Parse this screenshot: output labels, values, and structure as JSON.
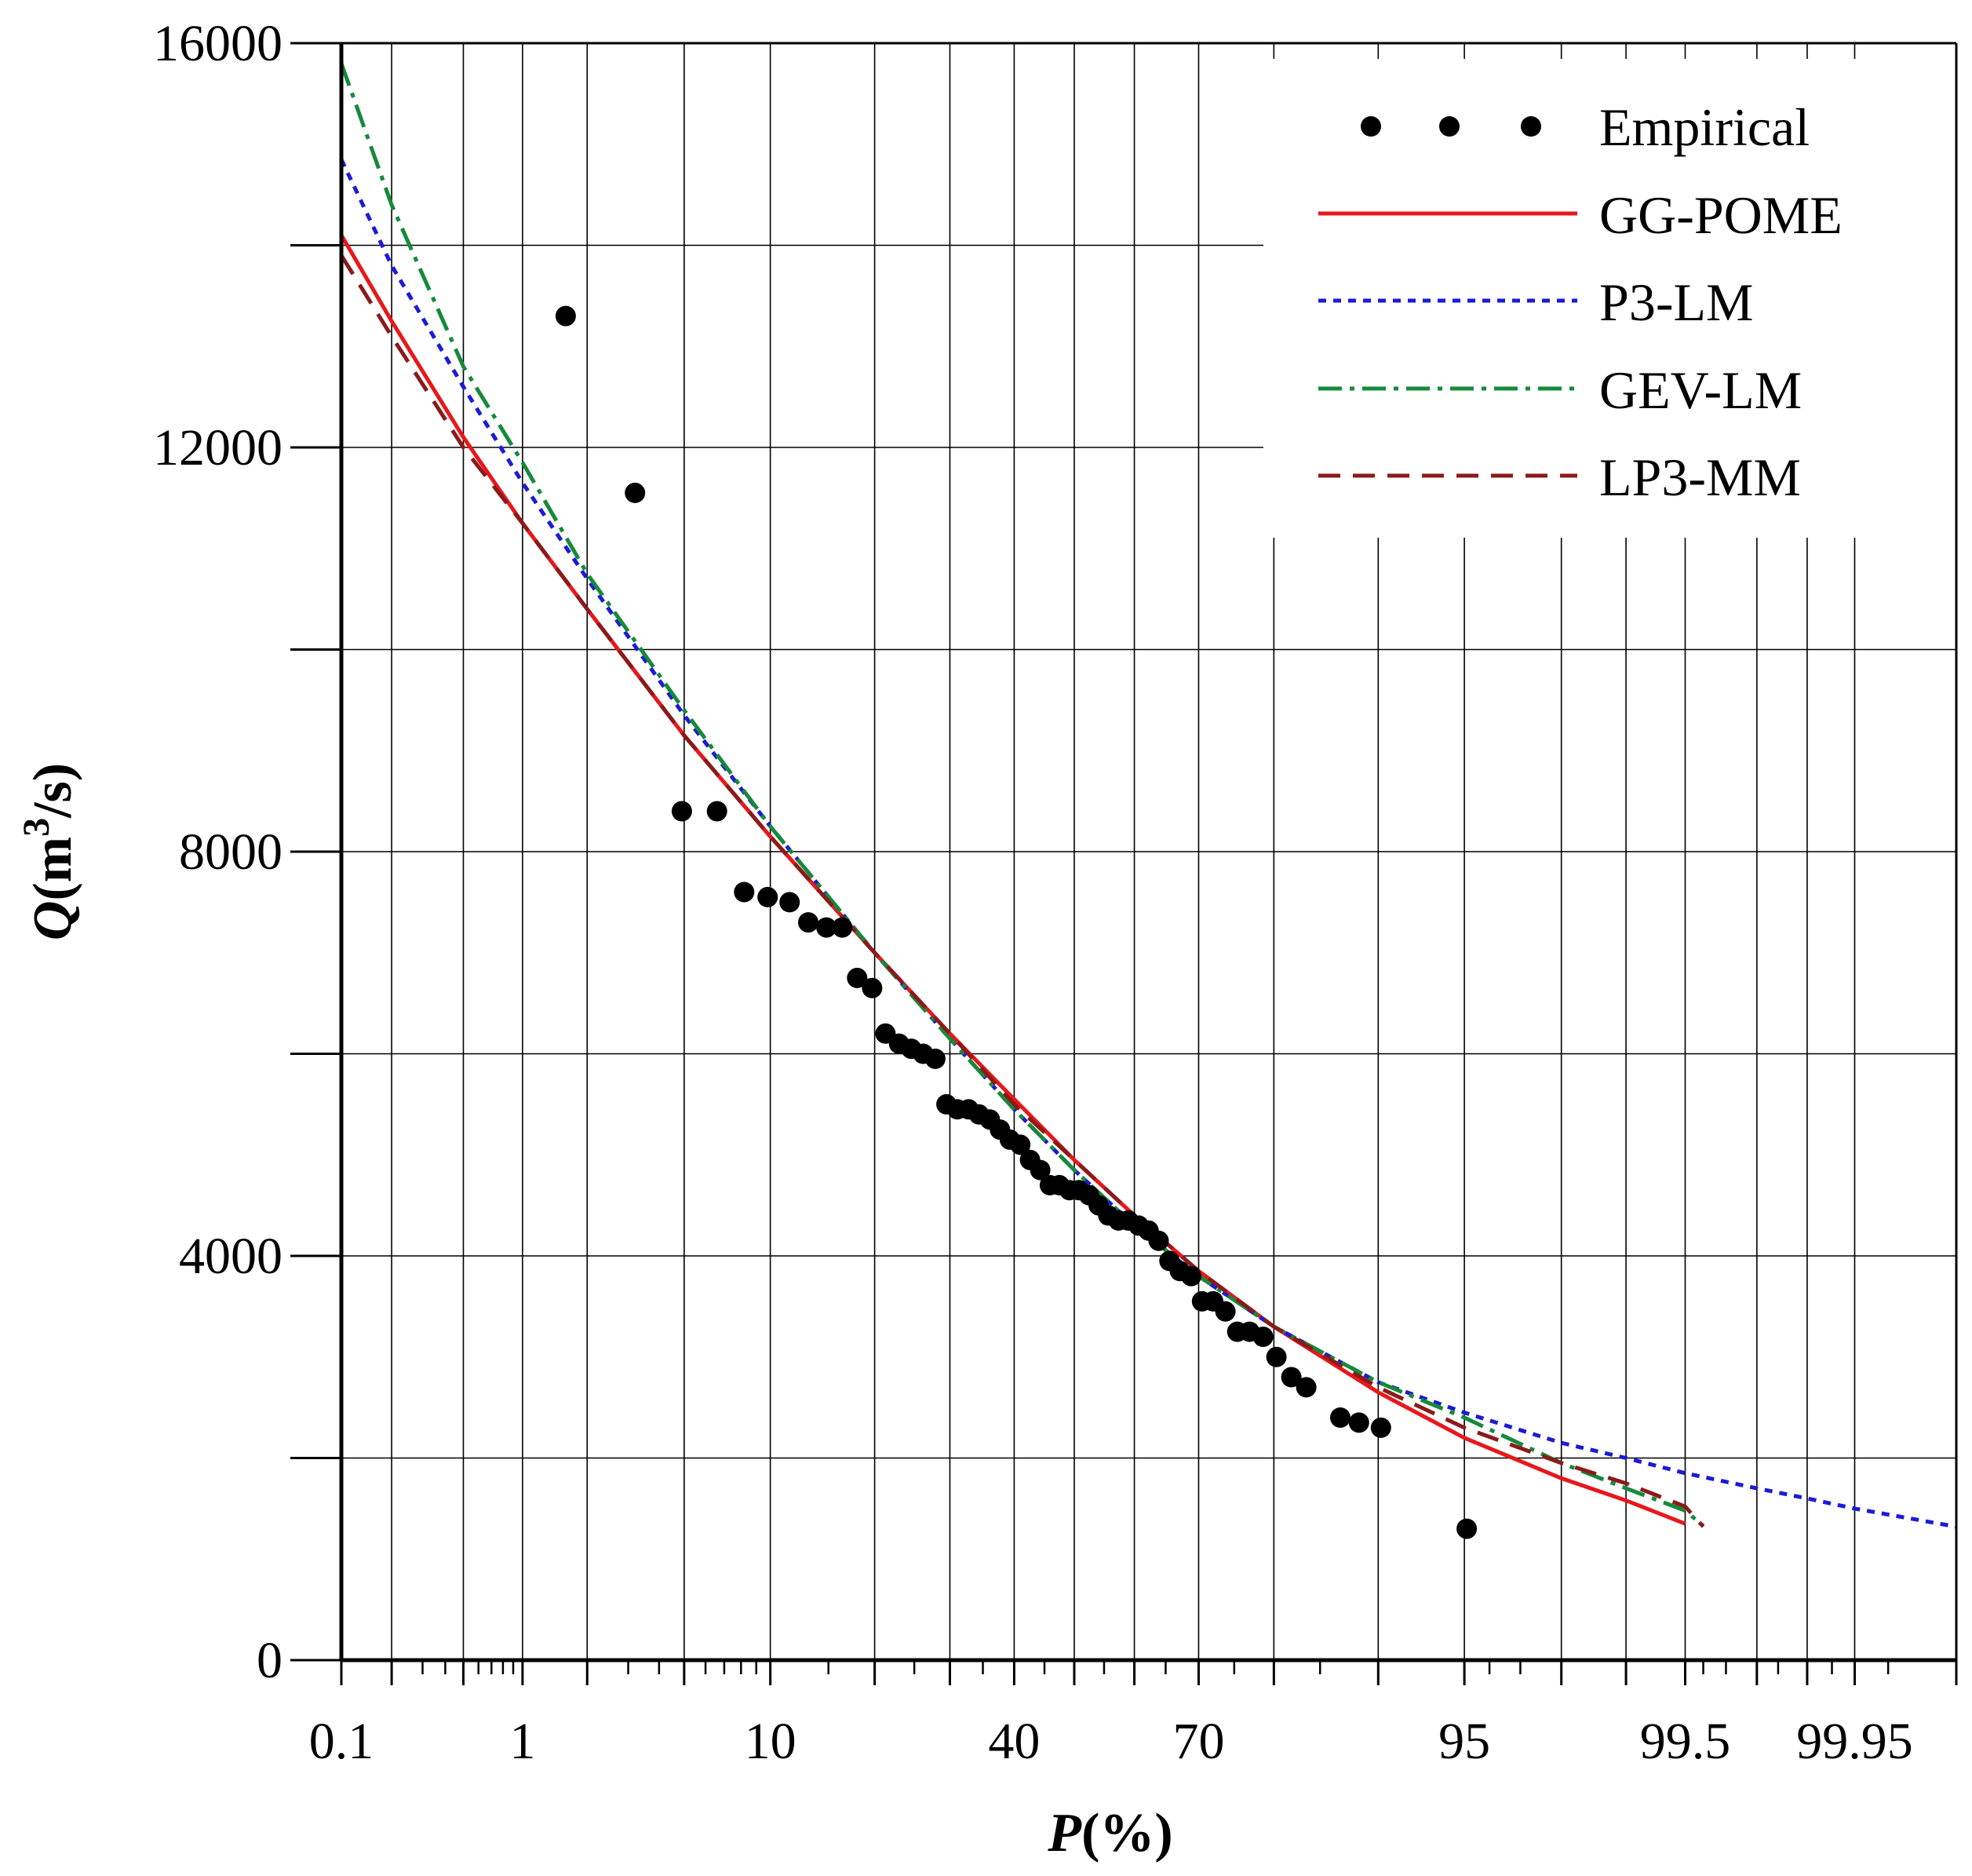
{
  "chart_data": {
    "type": "scatter",
    "title": "",
    "xlabel_symbol": "P",
    "xlabel_unit": "(%)",
    "ylabel_symbol": "Q",
    "ylabel_unit_prefix": "(m",
    "ylabel_unit_sup": "3",
    "ylabel_unit_suffix": "/s)",
    "x_scale": "normal-probability",
    "ylim": [
      0,
      16000
    ],
    "grid": true,
    "legend_position": "top-right",
    "x_tick_labels": [
      "0.1",
      "1",
      "10",
      "40",
      "70",
      "95",
      "99.5",
      "99.95"
    ],
    "x_major_ticks": [
      0.1,
      1,
      10,
      40,
      70,
      95,
      99.5,
      99.95
    ],
    "x_grid_values": [
      0.1,
      0.2,
      0.5,
      1,
      2,
      5,
      10,
      20,
      30,
      40,
      50,
      60,
      70,
      80,
      90,
      95,
      98,
      99,
      99.5,
      99.8,
      99.9,
      99.95,
      99.99
    ],
    "x_minor_ticks": [
      0.3,
      0.4,
      0.6,
      0.7,
      0.8,
      0.9,
      3,
      4,
      6,
      7,
      8,
      9,
      15,
      25,
      35,
      45,
      55,
      65,
      75,
      85,
      96,
      97,
      99.6,
      99.7,
      99.85,
      99.93,
      99.97
    ],
    "y_tick_values": [
      0,
      2000,
      4000,
      6000,
      8000,
      10000,
      12000,
      14000,
      16000
    ],
    "y_tick_labels": [
      "0",
      "",
      "4000",
      "",
      "8000",
      "",
      "12000",
      "",
      "16000"
    ],
    "series": [
      {
        "name": "Empirical",
        "style": "points",
        "color": "#000000",
        "points": [
          [
            1.6,
            13300
          ],
          [
            3.2,
            11550
          ],
          [
            4.9,
            8400
          ],
          [
            6.6,
            8400
          ],
          [
            8.2,
            7600
          ],
          [
            9.8,
            7550
          ],
          [
            11.5,
            7500
          ],
          [
            13.1,
            7300
          ],
          [
            14.8,
            7250
          ],
          [
            16.4,
            7250
          ],
          [
            18.0,
            6750
          ],
          [
            19.7,
            6650
          ],
          [
            21.3,
            6200
          ],
          [
            23.0,
            6100
          ],
          [
            24.6,
            6050
          ],
          [
            26.2,
            6000
          ],
          [
            27.9,
            5950
          ],
          [
            29.5,
            5500
          ],
          [
            31.1,
            5450
          ],
          [
            32.8,
            5450
          ],
          [
            34.4,
            5400
          ],
          [
            36.1,
            5350
          ],
          [
            37.7,
            5250
          ],
          [
            39.3,
            5150
          ],
          [
            41.0,
            5100
          ],
          [
            42.6,
            4950
          ],
          [
            44.3,
            4850
          ],
          [
            45.9,
            4700
          ],
          [
            47.5,
            4700
          ],
          [
            49.2,
            4650
          ],
          [
            50.8,
            4650
          ],
          [
            52.5,
            4600
          ],
          [
            54.1,
            4500
          ],
          [
            55.7,
            4400
          ],
          [
            57.4,
            4350
          ],
          [
            59.0,
            4350
          ],
          [
            60.7,
            4300
          ],
          [
            62.3,
            4250
          ],
          [
            63.9,
            4150
          ],
          [
            65.6,
            3950
          ],
          [
            67.2,
            3850
          ],
          [
            68.9,
            3800
          ],
          [
            70.5,
            3550
          ],
          [
            72.1,
            3550
          ],
          [
            73.8,
            3450
          ],
          [
            75.4,
            3250
          ],
          [
            77.0,
            3250
          ],
          [
            78.7,
            3200
          ],
          [
            80.3,
            3000
          ],
          [
            82.0,
            2800
          ],
          [
            83.6,
            2700
          ],
          [
            86.9,
            2400
          ],
          [
            88.5,
            2350
          ],
          [
            90.2,
            2300
          ],
          [
            95.1,
            1300
          ]
        ]
      },
      {
        "name": "GG-POME",
        "style": "solid",
        "color": "#e8171b",
        "points": [
          [
            0.1,
            14100
          ],
          [
            0.2,
            13250
          ],
          [
            0.5,
            12100
          ],
          [
            1,
            11250
          ],
          [
            2,
            10400
          ],
          [
            5,
            9150
          ],
          [
            10,
            8150
          ],
          [
            20,
            7000
          ],
          [
            30,
            6200
          ],
          [
            40,
            5550
          ],
          [
            50,
            4950
          ],
          [
            60,
            4400
          ],
          [
            70,
            3850
          ],
          [
            80,
            3300
          ],
          [
            90,
            2650
          ],
          [
            95,
            2200
          ],
          [
            98,
            1800
          ],
          [
            99,
            1580
          ],
          [
            99.5,
            1350
          ]
        ]
      },
      {
        "name": "P3-LM",
        "style": "dotted",
        "color": "#1b1bd6",
        "points": [
          [
            0.1,
            14850
          ],
          [
            0.2,
            13800
          ],
          [
            0.5,
            12600
          ],
          [
            1,
            11650
          ],
          [
            2,
            10700
          ],
          [
            5,
            9350
          ],
          [
            10,
            8250
          ],
          [
            20,
            7000
          ],
          [
            30,
            6150
          ],
          [
            40,
            5450
          ],
          [
            50,
            4850
          ],
          [
            60,
            4300
          ],
          [
            70,
            3800
          ],
          [
            80,
            3300
          ],
          [
            90,
            2750
          ],
          [
            95,
            2450
          ],
          [
            98,
            2150
          ],
          [
            99,
            2000
          ],
          [
            99.5,
            1850
          ],
          [
            99.8,
            1700
          ],
          [
            99.9,
            1600
          ],
          [
            99.95,
            1500
          ],
          [
            99.99,
            1320
          ]
        ]
      },
      {
        "name": "GEV-LM",
        "style": "dashdot",
        "color": "#158a3b",
        "points": [
          [
            0.1,
            15800
          ],
          [
            0.2,
            14400
          ],
          [
            0.5,
            12800
          ],
          [
            1,
            11850
          ],
          [
            2,
            10750
          ],
          [
            5,
            9400
          ],
          [
            10,
            8250
          ],
          [
            20,
            7000
          ],
          [
            30,
            6150
          ],
          [
            40,
            5450
          ],
          [
            50,
            4850
          ],
          [
            60,
            4300
          ],
          [
            70,
            3800
          ],
          [
            80,
            3300
          ],
          [
            90,
            2750
          ],
          [
            95,
            2400
          ],
          [
            98,
            1950
          ],
          [
            99,
            1700
          ],
          [
            99.5,
            1480
          ],
          [
            99.6,
            1330
          ]
        ]
      },
      {
        "name": "LP3-MM",
        "style": "dashed",
        "color": "#8b1a1a",
        "points": [
          [
            0.1,
            13900
          ],
          [
            0.2,
            13100
          ],
          [
            0.5,
            12000
          ],
          [
            1,
            11250
          ],
          [
            2,
            10400
          ],
          [
            5,
            9150
          ],
          [
            10,
            8150
          ],
          [
            20,
            7000
          ],
          [
            30,
            6200
          ],
          [
            40,
            5500
          ],
          [
            50,
            4950
          ],
          [
            60,
            4400
          ],
          [
            70,
            3850
          ],
          [
            80,
            3300
          ],
          [
            90,
            2700
          ],
          [
            95,
            2300
          ],
          [
            98,
            1950
          ],
          [
            99,
            1750
          ],
          [
            99.5,
            1520
          ],
          [
            99.6,
            1320
          ]
        ]
      }
    ]
  }
}
